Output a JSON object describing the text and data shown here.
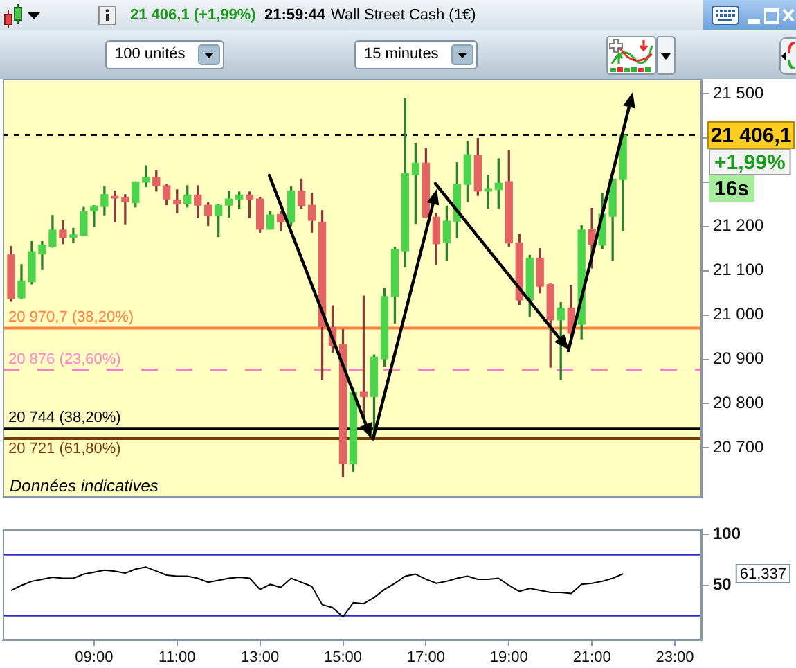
{
  "chart_data": [
    {
      "type": "candlestick",
      "title": "Wall Street Cash (1€)",
      "annotations": [
        "21 406,1 (+1,99%)",
        "21:59:44",
        "100 unités",
        "15 minutes",
        "Données indicatives",
        "+1,99%",
        "16s"
      ],
      "x": [
        7,
        7.25,
        7.5,
        7.75,
        8,
        8.25,
        8.5,
        8.75,
        9,
        9.25,
        9.5,
        9.75,
        10,
        10.25,
        10.5,
        10.75,
        11,
        11.25,
        11.5,
        11.75,
        12,
        12.25,
        12.5,
        12.75,
        13,
        13.25,
        13.5,
        13.75,
        14,
        14.25,
        14.5,
        14.75,
        15,
        15.25,
        15.5,
        15.75,
        16,
        16.25,
        16.5,
        16.75,
        17,
        17.25,
        17.5,
        17.75,
        18,
        18.25,
        18.5,
        18.75,
        19,
        19.25,
        19.5,
        19.75,
        20,
        20.25,
        20.5,
        20.75,
        21,
        21.25,
        21.5,
        21.75
      ],
      "ohlc": [
        [
          21136,
          21155,
          21031,
          21037
        ],
        [
          21039,
          21114,
          21037,
          21077
        ],
        [
          21075,
          21166,
          21070,
          21143
        ],
        [
          21138,
          21166,
          21104,
          21158
        ],
        [
          21155,
          21225,
          21153,
          21192
        ],
        [
          21192,
          21213,
          21161,
          21175
        ],
        [
          21176,
          21196,
          21163,
          21181
        ],
        [
          21180,
          21243,
          21179,
          21234
        ],
        [
          21235,
          21247,
          21199,
          21246
        ],
        [
          21245,
          21290,
          21226,
          21272
        ],
        [
          21268,
          21280,
          21211,
          21264
        ],
        [
          21266,
          21272,
          21206,
          21256
        ],
        [
          21254,
          21301,
          21244,
          21300
        ],
        [
          21300,
          21337,
          21290,
          21310
        ],
        [
          21310,
          21326,
          21280,
          21292
        ],
        [
          21292,
          21294,
          21249,
          21262
        ],
        [
          21260,
          21283,
          21231,
          21251
        ],
        [
          21251,
          21292,
          21244,
          21271
        ],
        [
          21271,
          21292,
          21220,
          21248
        ],
        [
          21248,
          21254,
          21202,
          21224
        ],
        [
          21224,
          21250,
          21177,
          21248
        ],
        [
          21248,
          21280,
          21221,
          21262
        ],
        [
          21262,
          21278,
          21241,
          21271
        ],
        [
          21271,
          21278,
          21220,
          21262
        ],
        [
          21262,
          21266,
          21187,
          21194
        ],
        [
          21194,
          21234,
          21194,
          21226
        ],
        [
          21227,
          21234,
          21190,
          21210
        ],
        [
          21210,
          21290,
          21202,
          21280
        ],
        [
          21280,
          21307,
          21241,
          21247
        ],
        [
          21248,
          21275,
          21187,
          21214
        ],
        [
          21210,
          21236,
          20855,
          20974
        ],
        [
          20972,
          21021,
          20916,
          20931
        ],
        [
          20934,
          20967,
          20635,
          20664
        ],
        [
          20664,
          20835,
          20647,
          20825
        ],
        [
          20827,
          21043,
          20767,
          20816
        ],
        [
          20816,
          20910,
          20723,
          20905
        ],
        [
          20901,
          21061,
          20884,
          21042
        ],
        [
          21042,
          21153,
          20982,
          21148
        ],
        [
          21145,
          21489,
          21109,
          21319
        ],
        [
          21317,
          21388,
          21207,
          21343
        ],
        [
          21343,
          21376,
          21220,
          21221
        ],
        [
          21221,
          21230,
          21114,
          21161
        ],
        [
          21163,
          21246,
          21124,
          21212
        ],
        [
          21212,
          21344,
          21174,
          21295
        ],
        [
          21295,
          21392,
          21256,
          21362
        ],
        [
          21360,
          21399,
          21270,
          21280
        ],
        [
          21280,
          21316,
          21241,
          21284
        ],
        [
          21283,
          21353,
          21241,
          21298
        ],
        [
          21301,
          21372,
          21155,
          21163
        ],
        [
          21163,
          21182,
          21024,
          21034
        ],
        [
          21034,
          21135,
          20996,
          21128
        ],
        [
          21128,
          21150,
          21050,
          21065
        ],
        [
          21069,
          21070,
          20882,
          20989
        ],
        [
          20989,
          21028,
          20854,
          21016
        ],
        [
          21016,
          21067,
          20947,
          20959
        ],
        [
          20979,
          21202,
          20946,
          21192
        ],
        [
          21194,
          21241,
          21106,
          21160
        ],
        [
          21158,
          21275,
          21150,
          21228
        ],
        [
          21223,
          21307,
          21124,
          21307
        ],
        [
          21306,
          21406.1,
          21190,
          21406.1
        ]
      ],
      "colors": [
        "#e46464",
        "#4cd44c",
        "#4cd44c",
        "#4cd44c",
        "#4cd44c",
        "#e46464",
        "#4cd44c",
        "#4cd44c",
        "#4cd44c",
        "#4cd44c",
        "#e46464",
        "#e46464",
        "#4cd44c",
        "#4cd44c",
        "#e46464",
        "#e46464",
        "#e46464",
        "#4cd44c",
        "#e46464",
        "#e46464",
        "#4cd44c",
        "#4cd44c",
        "#4cd44c",
        "#e46464",
        "#e46464",
        "#4cd44c",
        "#e46464",
        "#4cd44c",
        "#e46464",
        "#e46464",
        "#e46464",
        "#e46464",
        "#e46464",
        "#4cd44c",
        "#e46464",
        "#4cd44c",
        "#4cd44c",
        "#4cd44c",
        "#4cd44c",
        "#4cd44c",
        "#e46464",
        "#e46464",
        "#4cd44c",
        "#4cd44c",
        "#4cd44c",
        "#e46464",
        "#4cd44c",
        "#4cd44c",
        "#e46464",
        "#e46464",
        "#4cd44c",
        "#e46464",
        "#e46464",
        "#4cd44c",
        "#e46464",
        "#4cd44c",
        "#e46464",
        "#4cd44c",
        "#4cd44c",
        "#4cd44c"
      ],
      "xlim": [
        6.8,
        23.65
      ],
      "ylim": [
        20588,
        21533
      ],
      "yticks": [
        {
          "value": 20700,
          "label": "20 700"
        },
        {
          "value": 20800,
          "label": "20 800"
        },
        {
          "value": 20900,
          "label": "20 900"
        },
        {
          "value": 21000,
          "label": "21 000"
        },
        {
          "value": 21100,
          "label": "21 100"
        },
        {
          "value": 21200,
          "label": "21 200"
        },
        {
          "value": 21300,
          "label": null
        },
        {
          "value": 21400,
          "label": null
        },
        {
          "value": 21500,
          "label": "21 500"
        }
      ],
      "ref_lines": [
        {
          "axis": "y",
          "value": 21406.1,
          "label": "21 406,1",
          "color": "#000000",
          "line_style": "dashed"
        },
        {
          "axis": "y",
          "value": 20970.7,
          "label": "20 970,7 (38,20%)",
          "color": "#ff7f3f"
        },
        {
          "axis": "y",
          "value": 20876,
          "label": "20 876 (23,60%)",
          "color": "#ff80c8",
          "line_style": "dashed"
        },
        {
          "axis": "y",
          "value": 20744,
          "label": "20 744 (38,20%)",
          "color": "#000000"
        },
        {
          "axis": "y",
          "value": 20721,
          "label": "20 721 (61,80%)",
          "color": "#7a3c00"
        }
      ],
      "tick_labels": "y"
    },
    {
      "type": "line",
      "color": "#000000",
      "x": [
        7,
        7.25,
        7.5,
        7.75,
        8,
        8.25,
        8.5,
        8.75,
        9,
        9.25,
        9.5,
        9.75,
        10,
        10.25,
        10.5,
        10.75,
        11,
        11.25,
        11.5,
        11.75,
        12,
        12.25,
        12.5,
        12.75,
        13,
        13.25,
        13.5,
        13.75,
        14,
        14.25,
        14.5,
        14.75,
        15,
        15.25,
        15.5,
        15.75,
        16,
        16.25,
        16.5,
        16.75,
        17,
        17.25,
        17.5,
        17.75,
        18,
        18.25,
        18.5,
        18.75,
        19,
        19.25,
        19.5,
        19.75,
        20,
        20.25,
        20.5,
        20.75,
        21,
        21.25,
        21.5,
        21.75
      ],
      "values": [
        45,
        50,
        54,
        56,
        58,
        57,
        57,
        61,
        63,
        65,
        64,
        62,
        66,
        68,
        64,
        60,
        59,
        59,
        57,
        53,
        55,
        57,
        58,
        57,
        46,
        51,
        48,
        57,
        53,
        49,
        31,
        28,
        19,
        33,
        32,
        38,
        46,
        52,
        59,
        61,
        56,
        52,
        54,
        57,
        59,
        56,
        56,
        57,
        50,
        44,
        47,
        45,
        43,
        43,
        42,
        51,
        52,
        54,
        57,
        61.337
      ],
      "xlim": [
        6.8,
        23.65
      ],
      "xticks": [
        {
          "value": 9,
          "label": "09:00"
        },
        {
          "value": 11,
          "label": "11:00"
        },
        {
          "value": 13,
          "label": "13:00"
        },
        {
          "value": 15,
          "label": "15:00"
        },
        {
          "value": 17,
          "label": "17:00"
        },
        {
          "value": 19,
          "label": "19:00"
        },
        {
          "value": 21,
          "label": "21:00"
        },
        {
          "value": 23,
          "label": "23:00"
        }
      ],
      "ylim": [
        -4,
        105
      ],
      "yticks": [
        50,
        100
      ],
      "ref_lines": [
        {
          "axis": "y",
          "value": 80,
          "color": "#2b2bd6"
        },
        {
          "axis": "y",
          "value": 20,
          "color": "#2b2bd6"
        }
      ],
      "annotations": [
        "61,337"
      ]
    }
  ]
}
